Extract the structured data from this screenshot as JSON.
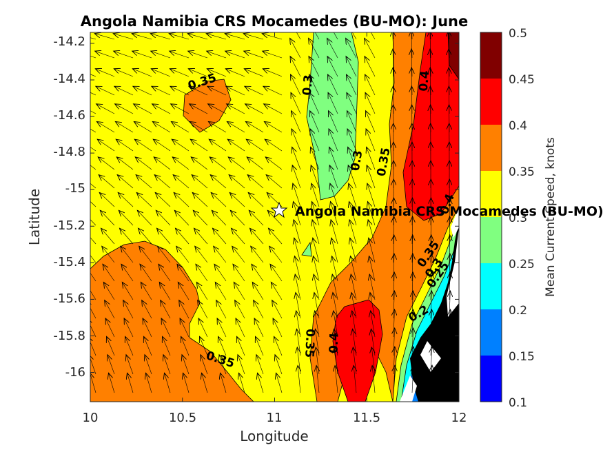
{
  "chart_data": {
    "type": "contour",
    "title": "Angola Namibia CRS Mocamedes (BU-MO): June",
    "xlabel": "Longitude",
    "ylabel": "Latitude",
    "xlim": [
      10,
      12
    ],
    "ylim": [
      -16.16,
      -14.14
    ],
    "xticks": [
      "10",
      "10.5",
      "11",
      "11.5",
      "12"
    ],
    "yticks": [
      "-14.2",
      "-14.4",
      "-14.6",
      "-14.8",
      "-15",
      "-15.2",
      "-15.4",
      "-15.6",
      "-15.8",
      "-16"
    ],
    "colorbar": {
      "label": "Mean Current Speed, knots",
      "ticks": [
        "0.1",
        "0.15",
        "0.2",
        "0.25",
        "0.3",
        "0.35",
        "0.4",
        "0.45",
        "0.5"
      ],
      "levels": [
        0.1,
        0.15,
        0.2,
        0.25,
        0.3,
        0.35,
        0.4,
        0.45,
        0.5
      ],
      "colors": [
        "#0000ff",
        "#0080ff",
        "#00ffff",
        "#80ff80",
        "#ffff00",
        "#ff8000",
        "#ff0000",
        "#800000"
      ]
    },
    "contour_labels": [
      {
        "text": "0.35",
        "lon": 10.58,
        "lat": -14.43
      },
      {
        "text": "0.3",
        "lon": 11.18,
        "lat": -14.45
      },
      {
        "text": "0.4",
        "lon": 11.83,
        "lat": -14.4
      },
      {
        "text": "0.3",
        "lon": 11.45,
        "lat": -14.9
      },
      {
        "text": "0.35",
        "lon": 11.58,
        "lat": -14.87
      },
      {
        "text": "0.4",
        "lon": 11.93,
        "lat": -15.15
      },
      {
        "text": "0.35",
        "lon": 11.8,
        "lat": -15.37
      },
      {
        "text": "0.3",
        "lon": 11.87,
        "lat": -15.45
      },
      {
        "text": "0.25",
        "lon": 11.87,
        "lat": -15.52
      },
      {
        "text": "0.2",
        "lon": 11.77,
        "lat": -15.72
      },
      {
        "text": "0.35",
        "lon": 11.18,
        "lat": -15.84
      },
      {
        "text": "0.4",
        "lon": 11.32,
        "lat": -15.83
      },
      {
        "text": "0.35",
        "lon": 10.72,
        "lat": -15.91
      }
    ],
    "station": {
      "name": "Angola Namibia CRS Mocamedes (BU-MO)",
      "lon": 11.02,
      "lat": -15.13
    }
  },
  "colors": {
    "land": "#000000",
    "nodata": "#ffffff",
    "axis": "#262626"
  }
}
